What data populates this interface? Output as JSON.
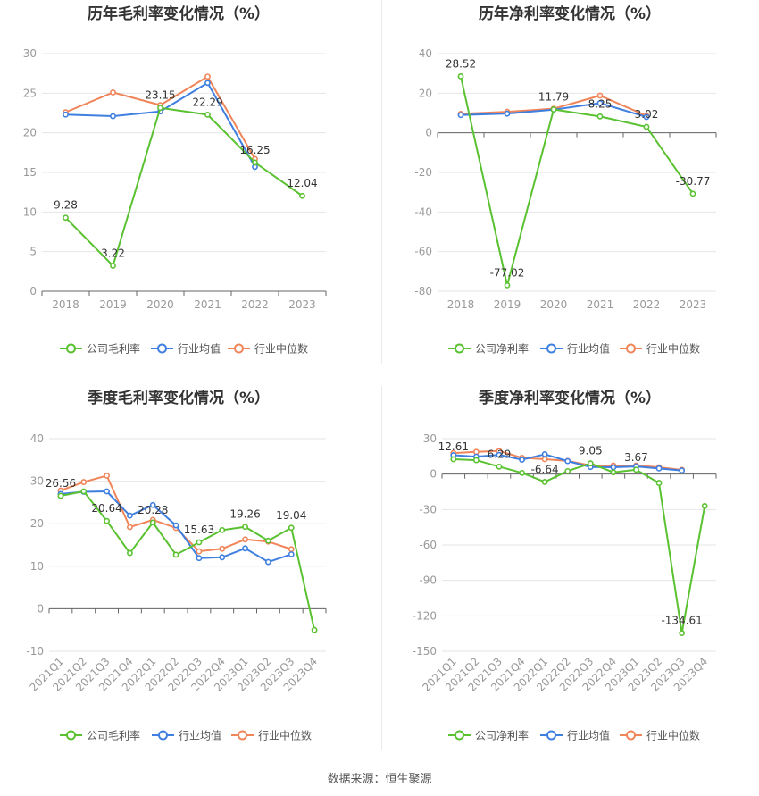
{
  "footer": {
    "source": "数据来源：恒生聚源"
  },
  "colors": {
    "company": "#5ac131",
    "industry_avg": "#3f7fe0",
    "industry_median": "#f0855a",
    "axis": "#999999",
    "grid": "#e6e6e6",
    "title": "#333333"
  },
  "chart_data": [
    {
      "id": "annual-gross",
      "type": "line",
      "title": "历年毛利率变化情况（%）",
      "categories": [
        "2018",
        "2019",
        "2020",
        "2021",
        "2022",
        "2023"
      ],
      "ylim": [
        0,
        30
      ],
      "yticks": [
        0,
        5,
        10,
        15,
        20,
        25,
        30
      ],
      "legend_position": "bottom",
      "series": [
        {
          "name": "公司毛利率",
          "role": "company",
          "values": [
            9.28,
            3.22,
            23.15,
            22.29,
            16.25,
            12.04
          ],
          "labels": [
            "9.28",
            "3.22",
            "23.15",
            "22.29",
            "16.25",
            "12.04"
          ]
        },
        {
          "name": "行业均值",
          "role": "industry_avg",
          "values": [
            22.3,
            22.1,
            22.7,
            26.3,
            15.7,
            null
          ]
        },
        {
          "name": "行业中位数",
          "role": "industry_median",
          "values": [
            22.6,
            25.1,
            23.5,
            27.1,
            16.7,
            null
          ]
        }
      ]
    },
    {
      "id": "annual-net",
      "type": "line",
      "title": "历年净利率变化情况（%）",
      "categories": [
        "2018",
        "2019",
        "2020",
        "2021",
        "2022",
        "2023"
      ],
      "ylim": [
        -80,
        40
      ],
      "yticks": [
        -80,
        -60,
        -40,
        -20,
        0,
        20,
        40
      ],
      "legend_position": "bottom",
      "series": [
        {
          "name": "公司净利率",
          "role": "company",
          "values": [
            28.52,
            -77.02,
            11.79,
            8.25,
            3.02,
            -30.77
          ],
          "labels": [
            "28.52",
            "-77.02",
            "11.79",
            "8.25",
            "3.02",
            "-30.77"
          ]
        },
        {
          "name": "行业均值",
          "role": "industry_avg",
          "values": [
            9.0,
            9.7,
            11.7,
            15.0,
            8.0,
            null
          ]
        },
        {
          "name": "行业中位数",
          "role": "industry_median",
          "values": [
            9.6,
            10.6,
            12.2,
            18.8,
            8.6,
            null
          ]
        }
      ]
    },
    {
      "id": "quarterly-gross",
      "type": "line",
      "title": "季度毛利率变化情况（%）",
      "categories": [
        "2021Q1",
        "2021Q2",
        "2021Q3",
        "2021Q4",
        "2022Q1",
        "2022Q2",
        "2022Q3",
        "2022Q4",
        "2023Q1",
        "2023Q2",
        "2023Q3",
        "2023Q4"
      ],
      "ylim": [
        -10,
        40
      ],
      "yticks": [
        -10,
        0,
        10,
        20,
        30,
        40
      ],
      "legend_position": "bottom",
      "series": [
        {
          "name": "公司毛利率",
          "role": "company",
          "values": [
            26.56,
            27.6,
            20.64,
            13.1,
            20.28,
            12.7,
            15.63,
            18.5,
            19.26,
            16.0,
            19.04,
            -5.0
          ],
          "labels": [
            "26.56",
            null,
            "20.64",
            null,
            "20.28",
            null,
            "15.63",
            null,
            "19.26",
            null,
            "19.04",
            null
          ]
        },
        {
          "name": "行业均值",
          "role": "industry_avg",
          "values": [
            27.0,
            27.5,
            27.6,
            21.9,
            24.4,
            19.6,
            11.9,
            12.1,
            14.2,
            11.0,
            12.8,
            null
          ]
        },
        {
          "name": "行业中位数",
          "role": "industry_median",
          "values": [
            27.8,
            29.8,
            31.3,
            19.2,
            20.9,
            19.0,
            13.5,
            14.1,
            16.3,
            15.8,
            14.0,
            null
          ]
        }
      ]
    },
    {
      "id": "quarterly-net",
      "type": "line",
      "title": "季度净利率变化情况（%）",
      "categories": [
        "2021Q1",
        "2021Q2",
        "2021Q3",
        "2021Q4",
        "2022Q1",
        "2022Q2",
        "2022Q3",
        "2022Q4",
        "2023Q1",
        "2023Q2",
        "2023Q3",
        "2023Q4"
      ],
      "ylim": [
        -150,
        30
      ],
      "yticks": [
        -150,
        -120,
        -90,
        -60,
        -30,
        0,
        30
      ],
      "legend_position": "bottom",
      "series": [
        {
          "name": "公司净利率",
          "role": "company",
          "values": [
            12.61,
            11.8,
            6.29,
            1.0,
            -6.64,
            2.5,
            9.05,
            1.5,
            3.67,
            -7.5,
            -134.61,
            -27.0
          ],
          "labels": [
            "12.61",
            null,
            "6.29",
            null,
            "-6.64",
            null,
            "9.05",
            null,
            "3.67",
            null,
            "-134.61",
            null
          ]
        },
        {
          "name": "行业均值",
          "role": "industry_avg",
          "values": [
            16.0,
            14.8,
            16.3,
            12.2,
            16.8,
            11.0,
            6.0,
            5.8,
            6.5,
            4.8,
            3.0,
            null
          ]
        },
        {
          "name": "行业中位数",
          "role": "industry_median",
          "values": [
            17.8,
            18.8,
            19.6,
            13.8,
            12.6,
            11.2,
            7.3,
            7.3,
            7.3,
            5.8,
            3.6,
            null
          ]
        }
      ]
    }
  ]
}
